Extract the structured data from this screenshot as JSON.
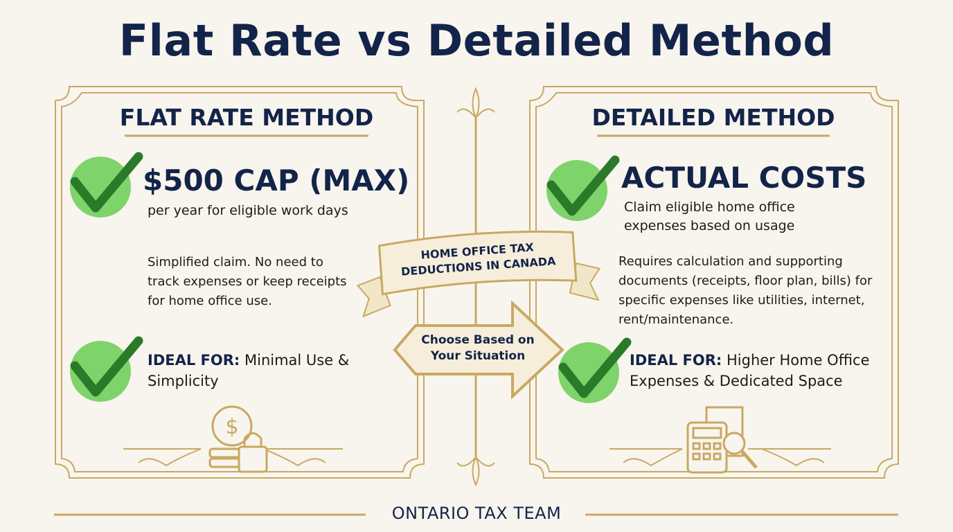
{
  "title": "Flat Rate vs Detailed Method",
  "left": {
    "heading": "FLAT RATE METHOD",
    "highlight": "$500 CAP (MAX)",
    "highlight_note": "per year for eligible work days",
    "description": "Simplified claim. No need to track expenses or keep receipts for home office use.",
    "ideal_label": "IDEAL FOR:",
    "ideal_text": "Minimal Use & Simplicity"
  },
  "center": {
    "banner": "HOME OFFICE TAX DEDUCTIONS IN CANADA",
    "arrow": "Choose Based on Your Situation"
  },
  "right": {
    "heading": "DETAILED METHOD",
    "highlight": "ACTUAL COSTS",
    "highlight_note": "Claim eligible home office expenses based on usage",
    "description": "Requires calculation and supporting documents (receipts, floor plan, bills) for specific expenses like utilities, internet, rent/maintenance.",
    "ideal_label": "IDEAL FOR:",
    "ideal_text": "Higher Home Office Expenses & Dedicated Space"
  },
  "footer": "ONTARIO TAX TEAM"
}
